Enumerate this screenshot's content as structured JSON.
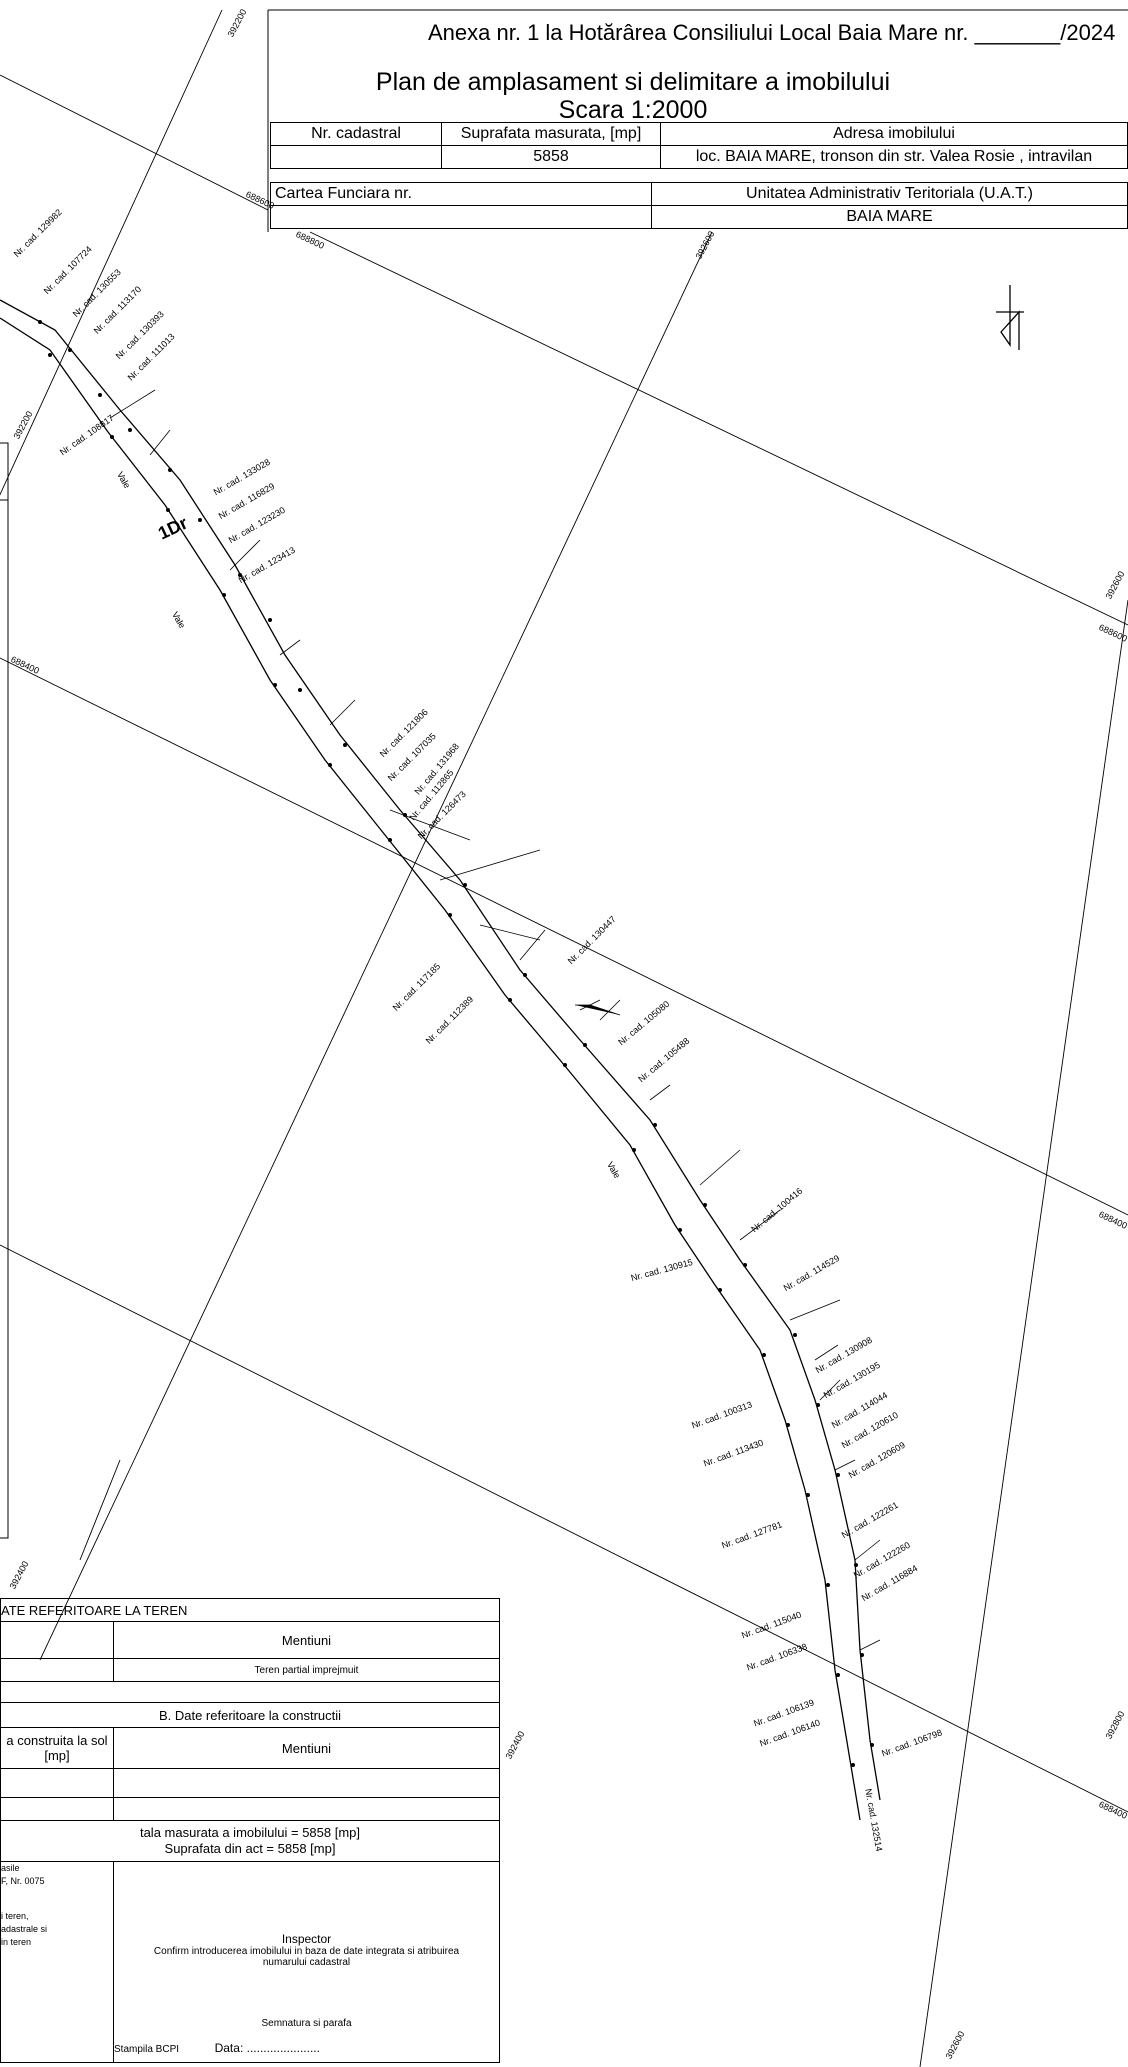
{
  "header": {
    "annex": "Anexa nr. 1 la Hotărârea Consiliului Local Baia Mare nr. _______/2024",
    "title": "Plan de amplasament si delimitare a imobilului",
    "scale": "Scara 1:2000"
  },
  "info_table": {
    "col_cadastral": "Nr. cadastral",
    "col_area": "Suprafata masurata, [mp]",
    "area_value": "5858",
    "col_address": "Adresa imobilului",
    "address_value": "loc. BAIA MARE, tronson din str. Valea Rosie , intravilan",
    "carte_funciara": "Cartea Funciara nr.",
    "uat_label": "Unitatea Administrativ Teritoriala (U.A.T.)",
    "uat_value": "BAIA MARE"
  },
  "grid_labels": [
    "392200",
    "392200",
    "392400",
    "392400",
    "392600",
    "392600",
    "392600",
    "392800",
    "688800",
    "688600",
    "688600",
    "688400",
    "688400",
    "688400"
  ],
  "parcel_label": "1Dr",
  "cadastral_labels": [
    "Nr. cad. 129982",
    "Nr. cad. 107724",
    "Nr. cad. 130553",
    "Nr. cad. 113170",
    "Nr. cad. 130393",
    "Nr. cad. 111013",
    "Nr. cad. 108817",
    "Nr. cad. 133028",
    "Nr. cad. 116829",
    "Nr. cad. 123230",
    "Nr. cad. 123413",
    "Nr. cad. 121806",
    "Nr. cad. 107035",
    "Nr. cad. 131968",
    "Nr. cad. 112865",
    "Nr. cad. 126473",
    "Nr. cad. 130447",
    "Nr. cad. 117185",
    "Nr. cad. 112389",
    "Nr. cad. 105080",
    "Nr. cad. 105488",
    "Nr. cad. 100416",
    "Nr. cad. 130915",
    "Nr. cad. 114529",
    "Nr. cad. 130908",
    "Nr. cad. 130195",
    "Nr. cad. 114044",
    "Nr. cad. 120610",
    "Nr. cad. 120609",
    "Nr. cad. 100313",
    "Nr. cad. 113430",
    "Nr. cad. 127781",
    "Nr. cad. 122261",
    "Nr. cad. 122260",
    "Nr. cad. 116884",
    "Nr. cad. 115040",
    "Nr. cad. 106338",
    "Nr. cad. 106139",
    "Nr. cad. 106140",
    "Nr. cad. 106798",
    "Nr. cad. 132514"
  ],
  "vale_label": "Vale",
  "bottom_table": {
    "title_a": "ATE REFERITOARE LA TEREN",
    "mentiuni_a": "Mentiuni",
    "teren_note": "Teren partial imprejmuit",
    "title_b": "B. Date referitoare la constructii",
    "construita": "a construita la sol",
    "construita_unit": "[mp]",
    "mentiuni_b": "Mentiuni",
    "total_area": "tala masurata a imobilului = 5858 [mp]",
    "act_area": "Suprafata din act = 5858 [mp]",
    "left_note1": "asile",
    "left_note2": "F, Nr.  0075",
    "left_note3": "i teren,",
    "left_note4": "adastrale si",
    "left_note5": "in teren",
    "inspector": "Inspector",
    "confirm": "Confirm introducerea imobilului in baza de date integrata si atribuirea numarului cadastral",
    "semnatura": "Semnatura si parafa",
    "stampila": "Stampila BCPI",
    "data": "Data: ......................"
  }
}
